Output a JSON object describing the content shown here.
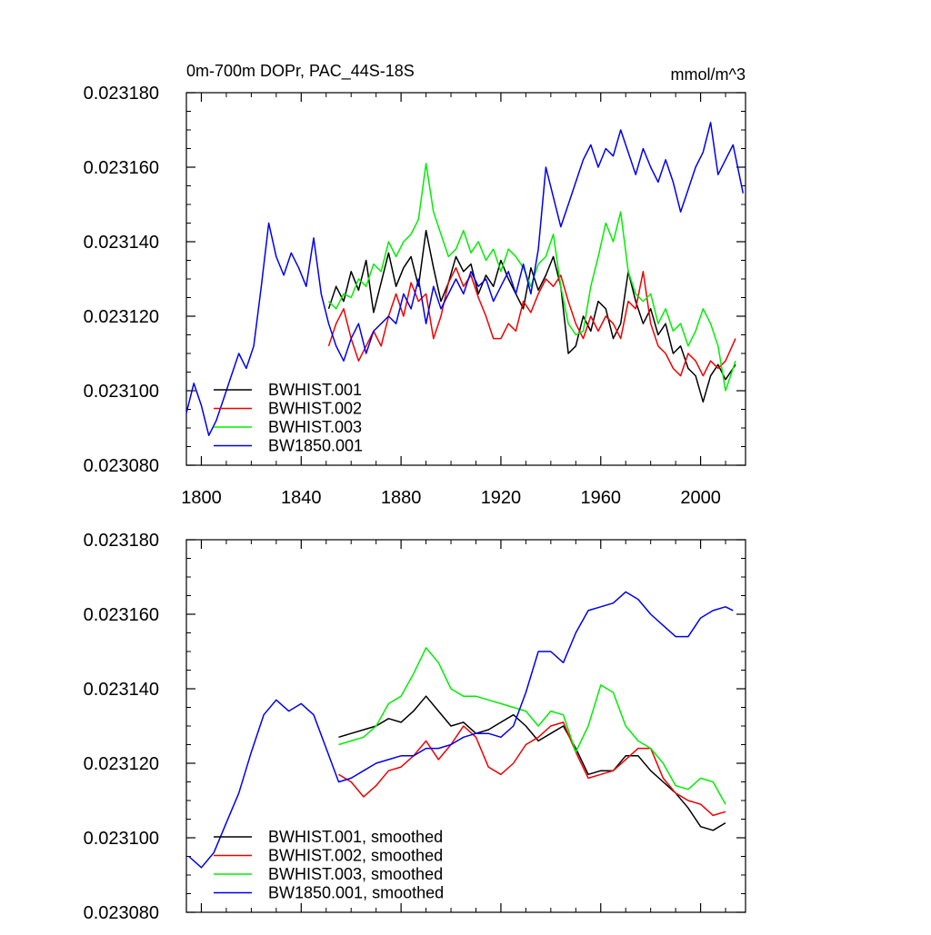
{
  "colors": {
    "BWHIST.001": "#000000",
    "BWHIST.002": "#ee0000",
    "BWHIST.003": "#00ee00",
    "BW1850.001": "#0000ee"
  },
  "chart_data": [
    {
      "type": "line",
      "title": "0m-700m DOPr, PAC_44S-18S",
      "units": "mmol/m^3",
      "xlim": [
        1794,
        2018
      ],
      "ylim": [
        0.02308,
        0.02318
      ],
      "x_ticks": [
        1800,
        1840,
        1880,
        1920,
        1960,
        2000
      ],
      "x_tick_labels": [
        "1800",
        "1840",
        "1880",
        "1920",
        "1960",
        "2000"
      ],
      "y_ticks": [
        0.02308,
        0.0231,
        0.02312,
        0.02314,
        0.02316,
        0.02318
      ],
      "y_tick_labels": [
        "0.023080",
        "0.023100",
        "0.023120",
        "0.023140",
        "0.023160",
        "0.023180"
      ],
      "legend_position": "bottom-left",
      "series": [
        {
          "name": "BWHIST.001",
          "color": "#000000",
          "x": [
            1851,
            1854,
            1857,
            1860,
            1863,
            1866,
            1869,
            1872,
            1875,
            1878,
            1881,
            1884,
            1887,
            1890,
            1893,
            1896,
            1899,
            1902,
            1905,
            1908,
            1911,
            1914,
            1917,
            1920,
            1923,
            1926,
            1929,
            1932,
            1935,
            1938,
            1941,
            1944,
            1947,
            1950,
            1953,
            1956,
            1959,
            1962,
            1965,
            1968,
            1971,
            1974,
            1977,
            1980,
            1983,
            1986,
            1989,
            1992,
            1995,
            1998,
            2001,
            2004,
            2007,
            2010,
            2014
          ],
          "y": [
            0.023122,
            0.023128,
            0.023124,
            0.023132,
            0.023127,
            0.023135,
            0.023121,
            0.023129,
            0.023137,
            0.023128,
            0.023133,
            0.023136,
            0.023128,
            0.023143,
            0.023133,
            0.023124,
            0.023129,
            0.023136,
            0.023132,
            0.023134,
            0.023126,
            0.023131,
            0.023128,
            0.023135,
            0.02313,
            0.023126,
            0.023122,
            0.023133,
            0.023127,
            0.023131,
            0.023136,
            0.023128,
            0.02311,
            0.023112,
            0.02312,
            0.023116,
            0.023124,
            0.023122,
            0.023114,
            0.023118,
            0.023132,
            0.023124,
            0.023118,
            0.023122,
            0.023115,
            0.023118,
            0.02311,
            0.023112,
            0.023106,
            0.023104,
            0.023097,
            0.023104,
            0.023107,
            0.023103,
            0.023107
          ]
        },
        {
          "name": "BWHIST.002",
          "color": "#ee0000",
          "x": [
            1851,
            1854,
            1857,
            1860,
            1863,
            1866,
            1869,
            1872,
            1875,
            1878,
            1881,
            1884,
            1887,
            1890,
            1893,
            1896,
            1899,
            1902,
            1905,
            1908,
            1911,
            1914,
            1917,
            1920,
            1923,
            1926,
            1929,
            1932,
            1935,
            1938,
            1941,
            1944,
            1947,
            1950,
            1953,
            1956,
            1959,
            1962,
            1965,
            1968,
            1971,
            1974,
            1977,
            1980,
            1983,
            1986,
            1989,
            1992,
            1995,
            1998,
            2001,
            2004,
            2007,
            2010,
            2014
          ],
          "y": [
            0.023112,
            0.023118,
            0.023122,
            0.023114,
            0.023108,
            0.023112,
            0.023116,
            0.023112,
            0.02312,
            0.023126,
            0.02312,
            0.023129,
            0.023124,
            0.023126,
            0.023114,
            0.02312,
            0.023129,
            0.023133,
            0.023128,
            0.023131,
            0.023125,
            0.02312,
            0.023114,
            0.023114,
            0.023118,
            0.023116,
            0.023124,
            0.023121,
            0.023126,
            0.02313,
            0.023128,
            0.023131,
            0.023124,
            0.023118,
            0.023114,
            0.02312,
            0.023116,
            0.02312,
            0.023118,
            0.023114,
            0.023124,
            0.023122,
            0.023132,
            0.023118,
            0.023112,
            0.02311,
            0.023106,
            0.023104,
            0.02311,
            0.023108,
            0.023104,
            0.023108,
            0.023106,
            0.023108,
            0.023114
          ]
        },
        {
          "name": "BWHIST.003",
          "color": "#00ee00",
          "x": [
            1851,
            1854,
            1857,
            1860,
            1863,
            1866,
            1869,
            1872,
            1875,
            1878,
            1881,
            1884,
            1887,
            1890,
            1893,
            1896,
            1899,
            1902,
            1905,
            1908,
            1911,
            1914,
            1917,
            1920,
            1923,
            1926,
            1929,
            1932,
            1935,
            1938,
            1941,
            1944,
            1947,
            1950,
            1953,
            1956,
            1959,
            1962,
            1965,
            1968,
            1971,
            1974,
            1977,
            1980,
            1983,
            1986,
            1989,
            1992,
            1995,
            1998,
            2001,
            2004,
            2007,
            2010,
            2014
          ],
          "y": [
            0.023124,
            0.023122,
            0.023126,
            0.023125,
            0.02313,
            0.023128,
            0.023134,
            0.023132,
            0.02314,
            0.023136,
            0.02314,
            0.023142,
            0.023146,
            0.023161,
            0.023148,
            0.023142,
            0.023136,
            0.023138,
            0.023143,
            0.023137,
            0.02314,
            0.023135,
            0.023138,
            0.023132,
            0.023138,
            0.023136,
            0.023133,
            0.023128,
            0.023134,
            0.023136,
            0.023142,
            0.023128,
            0.023118,
            0.023115,
            0.023116,
            0.023128,
            0.023136,
            0.023145,
            0.02314,
            0.023148,
            0.023132,
            0.023126,
            0.023124,
            0.023126,
            0.023118,
            0.023122,
            0.023116,
            0.023118,
            0.023112,
            0.023116,
            0.023122,
            0.023118,
            0.023112,
            0.0231,
            0.023108
          ]
        },
        {
          "name": "BW1850.001",
          "color": "#0000ee",
          "x": [
            1794,
            1797,
            1800,
            1803,
            1806,
            1809,
            1812,
            1815,
            1818,
            1821,
            1824,
            1827,
            1830,
            1833,
            1836,
            1839,
            1842,
            1845,
            1848,
            1851,
            1854,
            1857,
            1860,
            1863,
            1866,
            1869,
            1872,
            1875,
            1878,
            1881,
            1884,
            1887,
            1890,
            1893,
            1896,
            1899,
            1902,
            1905,
            1908,
            1911,
            1914,
            1917,
            1920,
            1923,
            1926,
            1929,
            1932,
            1935,
            1938,
            1941,
            1944,
            1947,
            1950,
            1953,
            1956,
            1959,
            1962,
            1965,
            1968,
            1971,
            1974,
            1977,
            1980,
            1983,
            1986,
            1989,
            1992,
            1995,
            1998,
            2001,
            2004,
            2007,
            2010,
            2013,
            2017
          ],
          "y": [
            0.023094,
            0.023102,
            0.023096,
            0.023088,
            0.023092,
            0.023098,
            0.023104,
            0.02311,
            0.023106,
            0.023112,
            0.023128,
            0.023145,
            0.023136,
            0.023131,
            0.023137,
            0.023133,
            0.023128,
            0.023141,
            0.023126,
            0.023118,
            0.023112,
            0.023108,
            0.023114,
            0.023118,
            0.02311,
            0.023116,
            0.023118,
            0.02312,
            0.023118,
            0.023126,
            0.023122,
            0.02313,
            0.023118,
            0.023128,
            0.023122,
            0.023126,
            0.02313,
            0.023126,
            0.023132,
            0.023128,
            0.02313,
            0.023124,
            0.023128,
            0.023132,
            0.023126,
            0.023134,
            0.023126,
            0.023138,
            0.02316,
            0.023152,
            0.023144,
            0.02315,
            0.023156,
            0.023162,
            0.023166,
            0.02316,
            0.023165,
            0.023163,
            0.02317,
            0.023164,
            0.023158,
            0.023165,
            0.02316,
            0.023156,
            0.023162,
            0.023156,
            0.023148,
            0.023154,
            0.02316,
            0.023164,
            0.023172,
            0.023158,
            0.023162,
            0.023166,
            0.023153
          ]
        }
      ]
    },
    {
      "type": "line",
      "title": "",
      "xlim": [
        1794,
        2018
      ],
      "ylim": [
        0.02308,
        0.02318
      ],
      "x_ticks": [
        1800,
        1840,
        1880,
        1920,
        1960,
        2000
      ],
      "y_ticks": [
        0.02308,
        0.0231,
        0.02312,
        0.02314,
        0.02316,
        0.02318
      ],
      "y_tick_labels": [
        "0.023080",
        "0.023100",
        "0.023120",
        "0.023140",
        "0.023160",
        "0.023180"
      ],
      "legend_position": "bottom-left",
      "series": [
        {
          "name": "BWHIST.001, smoothed",
          "color": "#000000",
          "x": [
            1855,
            1860,
            1865,
            1870,
            1875,
            1880,
            1885,
            1890,
            1895,
            1900,
            1905,
            1910,
            1915,
            1920,
            1925,
            1930,
            1935,
            1940,
            1945,
            1950,
            1955,
            1960,
            1965,
            1970,
            1975,
            1980,
            1985,
            1990,
            1995,
            2000,
            2005,
            2010
          ],
          "y": [
            0.023127,
            0.023128,
            0.023129,
            0.02313,
            0.023132,
            0.023131,
            0.023134,
            0.023138,
            0.023134,
            0.02313,
            0.023131,
            0.023128,
            0.023129,
            0.023131,
            0.023133,
            0.02313,
            0.023126,
            0.023128,
            0.02313,
            0.023124,
            0.023117,
            0.023118,
            0.023118,
            0.023122,
            0.023122,
            0.023118,
            0.023115,
            0.023112,
            0.023108,
            0.023103,
            0.023102,
            0.023104
          ]
        },
        {
          "name": "BWHIST.002, smoothed",
          "color": "#ee0000",
          "x": [
            1855,
            1860,
            1865,
            1870,
            1875,
            1880,
            1885,
            1890,
            1895,
            1900,
            1905,
            1910,
            1915,
            1920,
            1925,
            1930,
            1935,
            1940,
            1945,
            1950,
            1955,
            1960,
            1965,
            1970,
            1975,
            1980,
            1985,
            1990,
            1995,
            2000,
            2005,
            2010
          ],
          "y": [
            0.023117,
            0.023115,
            0.023111,
            0.023114,
            0.023118,
            0.023119,
            0.023122,
            0.023126,
            0.023121,
            0.023125,
            0.02313,
            0.023127,
            0.023119,
            0.023117,
            0.02312,
            0.023125,
            0.023127,
            0.02313,
            0.023131,
            0.023123,
            0.023116,
            0.023117,
            0.023118,
            0.023121,
            0.023124,
            0.023124,
            0.023116,
            0.023112,
            0.02311,
            0.023109,
            0.023106,
            0.023107
          ]
        },
        {
          "name": "BWHIST.003, smoothed",
          "color": "#00ee00",
          "x": [
            1855,
            1860,
            1865,
            1870,
            1875,
            1880,
            1885,
            1890,
            1895,
            1900,
            1905,
            1910,
            1915,
            1920,
            1925,
            1930,
            1935,
            1940,
            1945,
            1950,
            1955,
            1960,
            1965,
            1970,
            1975,
            1980,
            1985,
            1990,
            1995,
            2000,
            2005,
            2010
          ],
          "y": [
            0.023125,
            0.023126,
            0.023127,
            0.02313,
            0.023136,
            0.023138,
            0.023144,
            0.023151,
            0.023147,
            0.02314,
            0.023138,
            0.023138,
            0.023137,
            0.023136,
            0.023135,
            0.023134,
            0.02313,
            0.023134,
            0.023133,
            0.023123,
            0.02313,
            0.023141,
            0.023139,
            0.02313,
            0.023126,
            0.023124,
            0.02312,
            0.023114,
            0.023113,
            0.023116,
            0.023115,
            0.023109
          ]
        },
        {
          "name": "BW1850.001, smoothed",
          "color": "#0000ee",
          "x": [
            1795,
            1800,
            1805,
            1810,
            1815,
            1820,
            1825,
            1830,
            1835,
            1840,
            1845,
            1850,
            1855,
            1860,
            1865,
            1870,
            1875,
            1880,
            1885,
            1890,
            1895,
            1900,
            1905,
            1910,
            1915,
            1920,
            1925,
            1930,
            1935,
            1940,
            1945,
            1950,
            1955,
            1960,
            1965,
            1970,
            1975,
            1980,
            1985,
            1990,
            1995,
            2000,
            2005,
            2010,
            2013
          ],
          "y": [
            0.023095,
            0.023092,
            0.023096,
            0.023104,
            0.023112,
            0.023123,
            0.023133,
            0.023137,
            0.023134,
            0.023136,
            0.023133,
            0.023124,
            0.023115,
            0.023116,
            0.023118,
            0.02312,
            0.023121,
            0.023122,
            0.023122,
            0.023124,
            0.023124,
            0.023125,
            0.023127,
            0.023128,
            0.023128,
            0.023127,
            0.02313,
            0.023139,
            0.02315,
            0.02315,
            0.023147,
            0.023155,
            0.023161,
            0.023162,
            0.023163,
            0.023166,
            0.023164,
            0.02316,
            0.023157,
            0.023154,
            0.023154,
            0.023159,
            0.023161,
            0.023162,
            0.023161
          ]
        }
      ]
    }
  ]
}
